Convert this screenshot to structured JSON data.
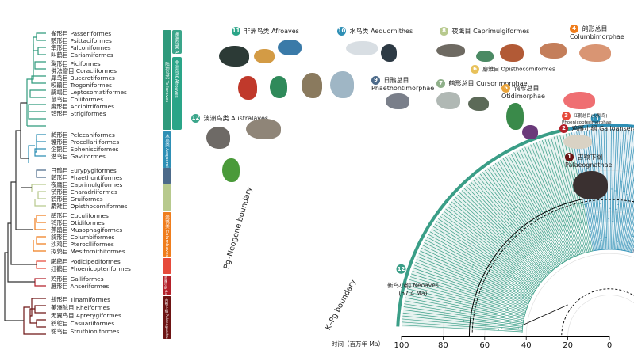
{
  "colors": {
    "afroaves": "#2aa588",
    "australaves": "#3a9e87",
    "aequornithes": "#2e8fb5",
    "phaethontimorphae": "#4c6a8a",
    "cursorimorphae": "#8fb08a",
    "caprimulgiformes": "#c3d3a0",
    "opisthocomiformes": "#e8c15a",
    "otidimorphae": "#e9a33a",
    "columbimorphae": "#ef7d1d",
    "phoenicopterimorphae": "#e64a3b",
    "galloanserae": "#b3202a",
    "palaeognathae": "#6d1414"
  },
  "orders": [
    "雀形目 Passeriformes",
    "鹦形目 Psittaciformes",
    "隼形目 Falconiformes",
    "叫鹤目 Cariamiformes",
    "䴕形目 Piciformes",
    "佛法僧目 Coraciiformes",
    "犀鸟目 Bucerotiformes",
    "咬鹃目 Trogoniformes",
    "鹃鴗目 Leptosomatiformes",
    "鼠鸟目 Coliiformes",
    "鹰形目 Accipitriformes",
    "鸮形目 Strigiformes",
    "鹈形目 Pelecaniformes",
    "鹱形目 Procellariiformes",
    "企鹅目 Sphenisciformes",
    "潜鸟目 Gaviiformes",
    "日鳽目 Eurypygiformes",
    "鹲形目 Phaethontiformes",
    "夜鹰目 Caprimulgiformes",
    "鸻形目 Charadriiformes",
    "鹤形目 Gruiformes",
    "麝雉目 Opisthocomiformes",
    "鹃形目 Cuculiformes",
    "鸨形目 Otidiformes",
    "蕉鹃目 Musophagiformes",
    "鸽形目 Columbiformes",
    "沙鸡目 Pteroclliformes",
    "拟鹑目 Mesitornithiformes",
    "䴙䴘目 Podicipediformes",
    "红鹳目 Phoenicopteriformes",
    "鸡形目 Galliformes",
    "雁形目 Anseriformes",
    "䳍形目 Tinamiformes",
    "美洲鸵目 Rheiformes",
    "无翼鸟目 Apterygiformes",
    "鹤鸵目 Casuariiformes",
    "鸵鸟目 Struthioniformes"
  ],
  "bands": {
    "australaves": "澳洲鸟类 Australaves",
    "afroaves": "非洲鸟类 Afroaves",
    "aequornithes": "水鸟类 Aequornithes",
    "telluraves": "陆地鸟类 Telluraves",
    "columbaves": "鸽鸨类 Columbaves",
    "galloanserae": "鸡雁小纲 Galloanserae",
    "palaeognathae": "古颚下纲 Palaeognathae"
  },
  "clades": {
    "c11": {
      "num": "11",
      "label": "非洲鸟类 Afroaves"
    },
    "c10": {
      "num": "10",
      "label": "水鸟类 Aequornithes"
    },
    "c8": {
      "num": "8",
      "label": "夜鹰目 Caprimulgiformes"
    },
    "c4": {
      "num": "4",
      "label": "鸽形总目 Columbimorphae"
    },
    "c6": {
      "num": "6",
      "label": "麝雉目 Opisthocomiformes"
    },
    "c9": {
      "num": "9",
      "label": "日鳽总目 Phaethontimorphae"
    },
    "c7": {
      "num": "7",
      "label": "鹤形总目 Cursorimorphae"
    },
    "c5": {
      "num": "5",
      "label": "鸨形总目 Otidimorphae"
    },
    "c3": {
      "num": "3",
      "label": "红鹳总目(火烈鸟) Phoenicopterimorphae"
    },
    "c12": {
      "num": "12",
      "label": "澳洲鸟类 Australaves"
    },
    "c2": {
      "num": "2",
      "label": "鸡雁小纲 Galloanserae"
    },
    "c1": {
      "num": "1",
      "label": "古颚下纲 Palaeognathae"
    }
  },
  "boundaries": {
    "pgneogene": "Pg–Neogene boundary",
    "kpg": "K–Pg boundary"
  },
  "neoaves": {
    "line1": "新鸟小纲 Neoaves",
    "line2": "(67.4 Ma)"
  },
  "axis": {
    "title": "时间（百万年 Ma）",
    "ticks": [
      "100",
      "80",
      "60",
      "40",
      "20",
      "0"
    ]
  },
  "ring_numbers": [
    "11",
    "10",
    "9",
    "8",
    "7",
    "6",
    "5",
    "4",
    "3",
    "2",
    "1"
  ],
  "side_number": "12"
}
